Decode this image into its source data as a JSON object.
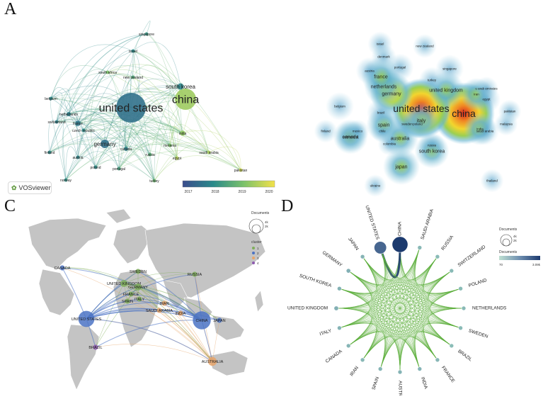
{
  "panels": {
    "A": {
      "label": "A",
      "logo_text": "VOSviewer",
      "colorbar": {
        "min": 2017,
        "max": 2020,
        "ticks": [
          "2017",
          "2018",
          "2019",
          "2020"
        ],
        "colors": [
          "#3b4c8c",
          "#2a8a8a",
          "#7cc26a",
          "#f2e14a"
        ]
      },
      "nodes": [
        {
          "label": "china",
          "weight": 20,
          "year": 2019.3
        },
        {
          "label": "united states",
          "weight": 28,
          "year": 2017.6
        },
        {
          "label": "south korea",
          "weight": 6,
          "year": 2017.9
        },
        {
          "label": "singapore",
          "weight": 2,
          "year": 2018.2
        },
        {
          "label": "israel",
          "weight": 2,
          "year": 2018.0
        },
        {
          "label": "south africa",
          "weight": 2,
          "year": 2019.0
        },
        {
          "label": "new zealand",
          "weight": 2,
          "year": 2018.5
        },
        {
          "label": "belgium",
          "weight": 2,
          "year": 2018.0
        },
        {
          "label": "netherlands",
          "weight": 4,
          "year": 2017.8
        },
        {
          "label": "switzerland",
          "weight": 3,
          "year": 2017.8
        },
        {
          "label": "france",
          "weight": 5,
          "year": 2017.7
        },
        {
          "label": "czech republic",
          "weight": 2,
          "year": 2018.0
        },
        {
          "label": "germany",
          "weight": 8,
          "year": 2017.6
        },
        {
          "label": "finland",
          "weight": 2,
          "year": 2018.0
        },
        {
          "label": "austria",
          "weight": 2,
          "year": 2017.9
        },
        {
          "label": "poland",
          "weight": 3,
          "year": 2018.0
        },
        {
          "label": "portugal",
          "weight": 2,
          "year": 2018.3
        },
        {
          "label": "norway",
          "weight": 2,
          "year": 2018.1
        },
        {
          "label": "canada",
          "weight": 4,
          "year": 2017.8
        },
        {
          "label": "turkey",
          "weight": 2,
          "year": 2018.8
        },
        {
          "label": "russia",
          "weight": 3,
          "year": 2018.6
        },
        {
          "label": "india",
          "weight": 5,
          "year": 2019.2
        },
        {
          "label": "romania",
          "weight": 2,
          "year": 2019.0
        },
        {
          "label": "egypt",
          "weight": 2,
          "year": 2019.5
        },
        {
          "label": "saudi arabia",
          "weight": 2,
          "year": 2019.4
        },
        {
          "label": "pakistan",
          "weight": 2,
          "year": 2019.7
        }
      ]
    },
    "B": {
      "label": "B",
      "labels": [
        {
          "text": "china",
          "intensity": 1.0
        },
        {
          "text": "united states",
          "intensity": 0.95
        },
        {
          "text": "germany",
          "intensity": 0.55
        },
        {
          "text": "united kingdom",
          "intensity": 0.4
        },
        {
          "text": "netherlands",
          "intensity": 0.45
        },
        {
          "text": "france",
          "intensity": 0.45
        },
        {
          "text": "italy",
          "intensity": 0.4
        },
        {
          "text": "spain",
          "intensity": 0.35
        },
        {
          "text": "australia",
          "intensity": 0.4
        },
        {
          "text": "canada",
          "intensity": 0.35
        },
        {
          "text": "japan",
          "intensity": 0.4
        },
        {
          "text": "south korea",
          "intensity": 0.35
        },
        {
          "text": "iran",
          "intensity": 0.3
        },
        {
          "text": "egypt",
          "intensity": 0.2
        },
        {
          "text": "india",
          "intensity": 0.3
        },
        {
          "text": "switzerland",
          "intensity": 0.25
        },
        {
          "text": "belgium",
          "intensity": 0.2
        },
        {
          "text": "brazil",
          "intensity": 0.2
        },
        {
          "text": "austria",
          "intensity": 0.18
        },
        {
          "text": "portugal",
          "intensity": 0.18
        },
        {
          "text": "singapore",
          "intensity": 0.2
        },
        {
          "text": "turkey",
          "intensity": 0.15
        },
        {
          "text": "denmark",
          "intensity": 0.12
        },
        {
          "text": "israel",
          "intensity": 0.12
        },
        {
          "text": "new zealand",
          "intensity": 0.1
        },
        {
          "text": "saudi arabia",
          "intensity": 0.2
        },
        {
          "text": "russia",
          "intensity": 0.15
        },
        {
          "text": "poland",
          "intensity": 0.2
        },
        {
          "text": "sweden",
          "intensity": 0.2
        },
        {
          "text": "u arab emirates",
          "intensity": 0.1
        },
        {
          "text": "thailand",
          "intensity": 0.08
        },
        {
          "text": "pakistan",
          "intensity": 0.08
        },
        {
          "text": "malaysia",
          "intensity": 0.08
        },
        {
          "text": "colombia",
          "intensity": 0.08
        },
        {
          "text": "mexico",
          "intensity": 0.08
        },
        {
          "text": "chile",
          "intensity": 0.08
        },
        {
          "text": "finland",
          "intensity": 0.08
        },
        {
          "text": "ukraine",
          "intensity": 0.06
        }
      ]
    },
    "C": {
      "label": "C",
      "legend": {
        "size_title": "Documents",
        "size_values": [
          "4k",
          "2k"
        ],
        "cluster_title": "cluster",
        "clusters": [
          {
            "name": "1",
            "color": "#7fae5a"
          },
          {
            "name": "2",
            "color": "#4b73c4"
          },
          {
            "name": "3",
            "color": "#e8a56a"
          },
          {
            "name": "4",
            "color": "#8e5bb0"
          }
        ]
      },
      "countries": [
        {
          "name": "CANADA",
          "cluster": 2,
          "weight": 2
        },
        {
          "name": "UNITED STATES",
          "cluster": 2,
          "weight": 8
        },
        {
          "name": "BRAZIL",
          "cluster": 4,
          "weight": 2
        },
        {
          "name": "SWEDEN",
          "cluster": 1,
          "weight": 2
        },
        {
          "name": "UNITED KINGDOM",
          "cluster": 1,
          "weight": 3
        },
        {
          "name": "GERMANY",
          "cluster": 1,
          "weight": 3
        },
        {
          "name": "FRANCE",
          "cluster": 1,
          "weight": 2
        },
        {
          "name": "ITALY",
          "cluster": 1,
          "weight": 2
        },
        {
          "name": "SPAIN",
          "cluster": 1,
          "weight": 2
        },
        {
          "name": "RUSSIA",
          "cluster": 1,
          "weight": 2
        },
        {
          "name": "IRAN",
          "cluster": 3,
          "weight": 2
        },
        {
          "name": "SAUDI ARABIA",
          "cluster": 3,
          "weight": 2
        },
        {
          "name": "INDIA",
          "cluster": 3,
          "weight": 2
        },
        {
          "name": "CHINA",
          "cluster": 2,
          "weight": 9
        },
        {
          "name": "JAPAN",
          "cluster": 2,
          "weight": 2
        },
        {
          "name": "AUSTRALIA",
          "cluster": 3,
          "weight": 4
        }
      ]
    },
    "D": {
      "label": "D",
      "legend": {
        "size_title": "Documents",
        "size_values": [
          "4k",
          "2k"
        ],
        "color_title": "Documents",
        "color_min": "70",
        "color_max": "3.09k"
      },
      "countries": [
        {
          "name": "CHINA",
          "docs": 3090
        },
        {
          "name": "SAUDI ARABIA",
          "docs": 150
        },
        {
          "name": "RUSSIA",
          "docs": 120
        },
        {
          "name": "SWITZERLAND",
          "docs": 130
        },
        {
          "name": "POLAND",
          "docs": 110
        },
        {
          "name": "NETHERLANDS",
          "docs": 140
        },
        {
          "name": "SWEDEN",
          "docs": 120
        },
        {
          "name": "BRAZIL",
          "docs": 100
        },
        {
          "name": "FRANCE",
          "docs": 170
        },
        {
          "name": "INDIA",
          "docs": 200
        },
        {
          "name": "AUSTRALIA",
          "docs": 210
        },
        {
          "name": "SPAIN",
          "docs": 180
        },
        {
          "name": "IRAN",
          "docs": 150
        },
        {
          "name": "CANADA",
          "docs": 180
        },
        {
          "name": "ITALY",
          "docs": 200
        },
        {
          "name": "UNITED KINGDOM",
          "docs": 260
        },
        {
          "name": "SOUTH KOREA",
          "docs": 230
        },
        {
          "name": "GERMANY",
          "docs": 250
        },
        {
          "name": "JAPAN",
          "docs": 210
        },
        {
          "name": "UNITED STATES",
          "docs": 1900
        }
      ]
    }
  }
}
